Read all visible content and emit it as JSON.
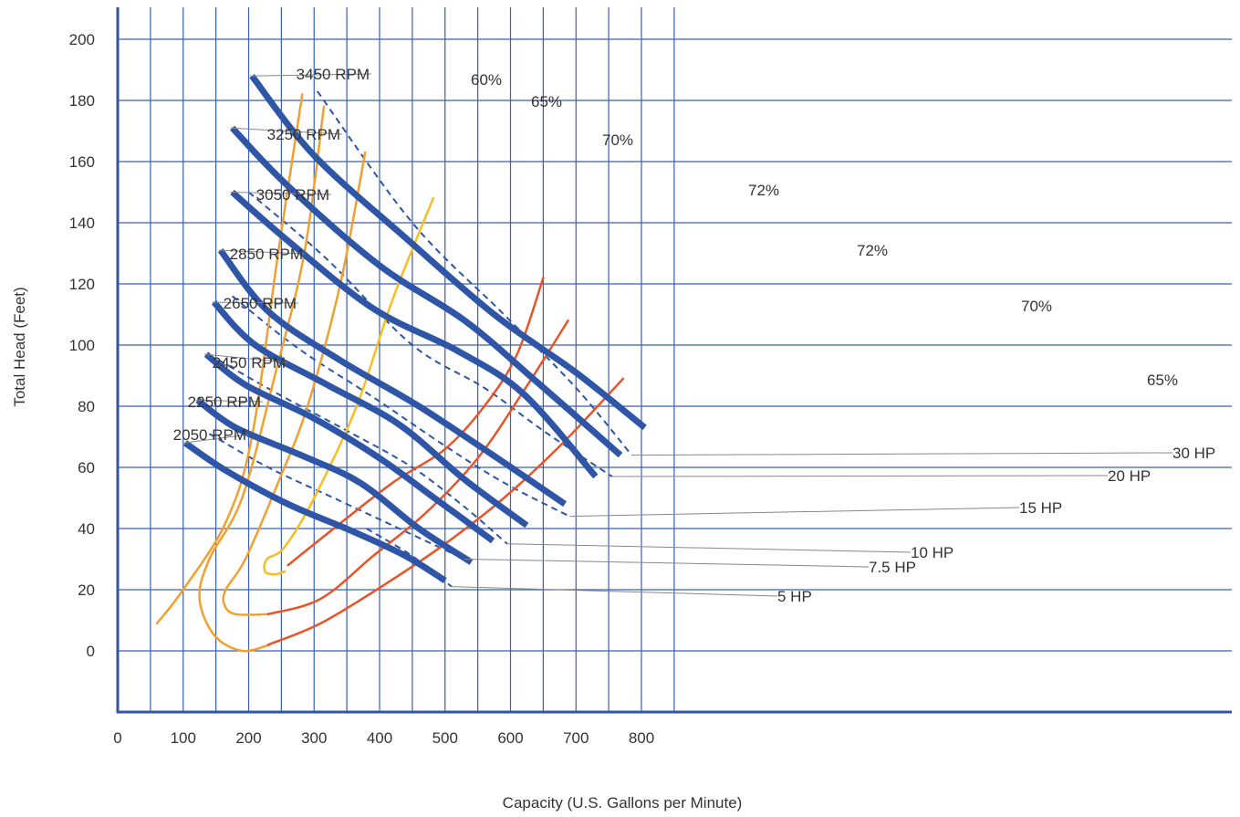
{
  "chart_data": {
    "type": "line",
    "title": "",
    "xlabel": "Capacity (U.S. Gallons per Minute)",
    "ylabel": "Total Head (Feet)",
    "xlim": [
      0,
      850
    ],
    "ylim": [
      -20,
      210
    ],
    "xticks": [
      0,
      100,
      200,
      300,
      400,
      500,
      600,
      700,
      800
    ],
    "yticks": [
      0,
      20,
      40,
      60,
      80,
      100,
      120,
      140,
      160,
      180,
      200
    ],
    "grid": true,
    "colors": {
      "speed": "#2f56a6",
      "horsepower": "#2f56a6",
      "efficiency_orange": "#f0a030",
      "efficiency_red": "#e8542a",
      "efficiency_yellow": "#f5bf22",
      "grid": "#3a5fb3"
    },
    "speed_curves": [
      {
        "name": "3450 RPM",
        "points": [
          [
            205,
            188
          ],
          [
            300,
            162
          ],
          [
            440,
            135
          ],
          [
            575,
            110
          ],
          [
            700,
            91
          ],
          [
            805,
            73
          ]
        ]
      },
      {
        "name": "3250 RPM",
        "points": [
          [
            175,
            171
          ],
          [
            260,
            152
          ],
          [
            400,
            126
          ],
          [
            530,
            108
          ],
          [
            640,
            88
          ],
          [
            768,
            64
          ]
        ]
      },
      {
        "name": "3050 RPM",
        "points": [
          [
            175,
            150
          ],
          [
            255,
            135
          ],
          [
            390,
            112
          ],
          [
            520,
            98
          ],
          [
            620,
            84
          ],
          [
            730,
            57
          ]
        ]
      },
      {
        "name": "2850 RPM",
        "points": [
          [
            157,
            131
          ],
          [
            230,
            111
          ],
          [
            340,
            95
          ],
          [
            460,
            80
          ],
          [
            580,
            63
          ],
          [
            683,
            48
          ]
        ]
      },
      {
        "name": "2650 RPM",
        "points": [
          [
            147,
            114
          ],
          [
            210,
            100
          ],
          [
            320,
            87
          ],
          [
            430,
            74
          ],
          [
            530,
            56
          ],
          [
            625,
            41
          ]
        ]
      },
      {
        "name": "2450 RPM",
        "points": [
          [
            135,
            97
          ],
          [
            195,
            87
          ],
          [
            300,
            76
          ],
          [
            400,
            63
          ],
          [
            490,
            49
          ],
          [
            573,
            36
          ]
        ]
      },
      {
        "name": "2250 RPM",
        "points": [
          [
            122,
            82
          ],
          [
            180,
            73
          ],
          [
            280,
            64
          ],
          [
            370,
            55
          ],
          [
            460,
            40
          ],
          [
            540,
            29
          ]
        ]
      },
      {
        "name": "2050 RPM",
        "points": [
          [
            103,
            68
          ],
          [
            165,
            59
          ],
          [
            260,
            48
          ],
          [
            360,
            39
          ],
          [
            440,
            31
          ],
          [
            500,
            23
          ]
        ]
      }
    ],
    "horsepower_curves": [
      {
        "name": "30 HP",
        "points": [
          [
            305,
            183
          ],
          [
            450,
            140
          ],
          [
            590,
            110
          ],
          [
            700,
            86
          ],
          [
            785,
            64
          ]
        ]
      },
      {
        "name": "20 HP",
        "points": [
          [
            200,
            150
          ],
          [
            320,
            128
          ],
          [
            450,
            100
          ],
          [
            560,
            86
          ],
          [
            650,
            72
          ],
          [
            755,
            57
          ]
        ]
      },
      {
        "name": "15 HP",
        "points": [
          [
            175,
            116
          ],
          [
            275,
            99
          ],
          [
            390,
            83
          ],
          [
            500,
            67
          ],
          [
            590,
            55
          ],
          [
            690,
            44
          ]
        ]
      },
      {
        "name": "10 HP",
        "points": [
          [
            155,
            95
          ],
          [
            245,
            84
          ],
          [
            350,
            72
          ],
          [
            450,
            60
          ],
          [
            530,
            47
          ],
          [
            595,
            35
          ]
        ]
      },
      {
        "name": "7.5 HP",
        "points": [
          [
            140,
            71
          ],
          [
            230,
            60
          ],
          [
            330,
            50
          ],
          [
            440,
            39
          ],
          [
            530,
            30
          ]
        ]
      },
      {
        "name": "5 HP",
        "points": [
          [
            380,
            40
          ],
          [
            450,
            31
          ],
          [
            510,
            21
          ]
        ]
      }
    ],
    "efficiency_curves": [
      {
        "name": "60%",
        "color": "orange",
        "points": [
          [
            60,
            9
          ],
          [
            100,
            20
          ],
          [
            165,
            42
          ],
          [
            205,
            70
          ],
          [
            245,
            130
          ],
          [
            282,
            182
          ]
        ]
      },
      {
        "name": "65%",
        "color": "orange",
        "points": [
          [
            315,
            178
          ],
          [
            285,
            130
          ],
          [
            240,
            90
          ],
          [
            190,
            50
          ],
          [
            140,
            30
          ],
          [
            125,
            17
          ],
          [
            148,
            5
          ],
          [
            190,
            0
          ],
          [
            232,
            2
          ]
        ]
      },
      {
        "name": "70%",
        "color": "orange",
        "points": [
          [
            378,
            163
          ],
          [
            340,
            120
          ],
          [
            290,
            80
          ],
          [
            245,
            55
          ],
          [
            195,
            30
          ],
          [
            165,
            20
          ],
          [
            163,
            15
          ],
          [
            180,
            12
          ],
          [
            230,
            12
          ]
        ]
      },
      {
        "name": "72%",
        "color": "yellow",
        "points": [
          [
            482,
            148
          ],
          [
            420,
            115
          ],
          [
            365,
            80
          ],
          [
            300,
            50
          ],
          [
            255,
            34
          ],
          [
            228,
            30
          ],
          [
            225,
            26
          ],
          [
            240,
            25
          ],
          [
            255,
            26
          ]
        ]
      },
      {
        "name": "72%",
        "color": "red",
        "points": [
          [
            260,
            28
          ],
          [
            330,
            40
          ],
          [
            420,
            55
          ],
          [
            500,
            66
          ],
          [
            560,
            80
          ],
          [
            610,
            97
          ],
          [
            650,
            122
          ]
        ]
      },
      {
        "name": "70%",
        "color": "red",
        "points": [
          [
            230,
            12
          ],
          [
            310,
            17
          ],
          [
            390,
            31
          ],
          [
            470,
            45
          ],
          [
            550,
            63
          ],
          [
            620,
            85
          ],
          [
            688,
            108
          ]
        ]
      },
      {
        "name": "65%",
        "color": "red",
        "points": [
          [
            230,
            2
          ],
          [
            310,
            9
          ],
          [
            410,
            22
          ],
          [
            500,
            35
          ],
          [
            590,
            50
          ],
          [
            680,
            68
          ],
          [
            772,
            89
          ]
        ]
      }
    ],
    "annotations": {
      "speed_labels": [
        "3450 RPM",
        "3250 RPM",
        "3050 RPM",
        "2850 RPM",
        "2650 RPM",
        "2450 RPM",
        "2250 RPM",
        "2050 RPM"
      ],
      "hp_labels": [
        "30 HP",
        "20 HP",
        "15 HP",
        "10 HP",
        "7.5 HP",
        "5 HP"
      ],
      "efficiency_labels": [
        "60%",
        "65%",
        "70%",
        "72%",
        "72%",
        "70%",
        "65%"
      ]
    }
  }
}
